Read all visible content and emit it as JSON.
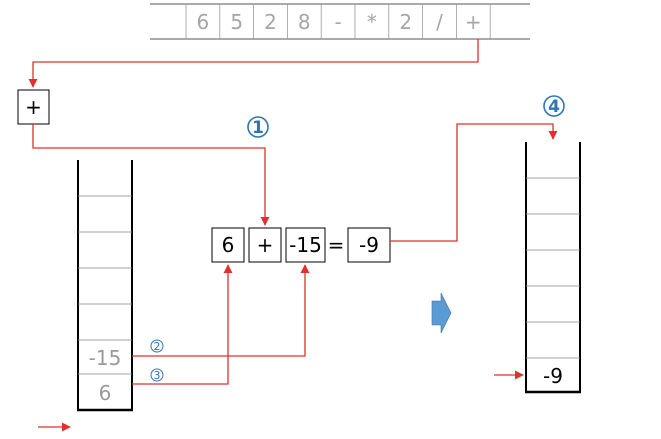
{
  "input_tokens": [
    "6",
    "5",
    "2",
    "8",
    "-",
    "*",
    "2",
    "/",
    "+"
  ],
  "current_operator": "+",
  "left_stack": [
    "-15",
    "6"
  ],
  "expression": {
    "left": "6",
    "operator": "+",
    "right": "-15",
    "equals": "=",
    "result": "-9"
  },
  "right_stack": [
    "-9"
  ],
  "steps": {
    "s1": "1",
    "s2": "2",
    "s3": "3",
    "s4": "4"
  },
  "colors": {
    "arrow": "#e0302f",
    "step": "#2e75b6",
    "push_arrow": "#5b9bd5"
  }
}
